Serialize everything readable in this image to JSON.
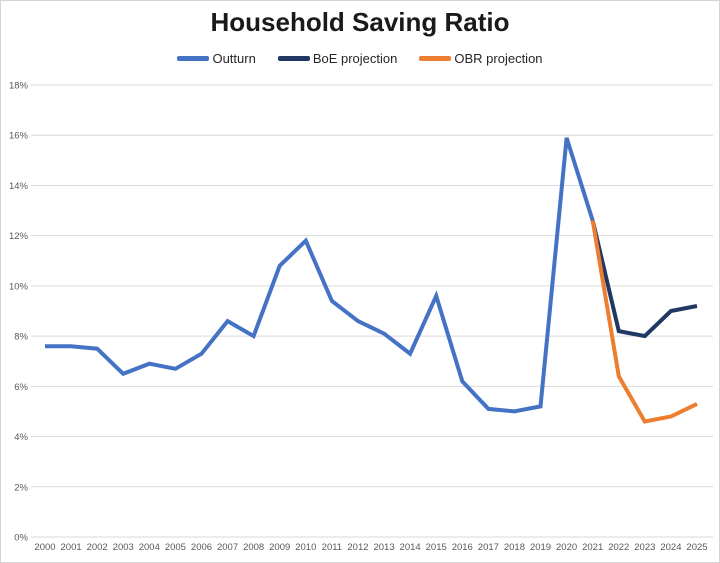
{
  "title": "Household Saving Ratio",
  "legend": [
    {
      "label": "Outturn",
      "color": "#4472C4"
    },
    {
      "label": "BoE projection",
      "color": "#1F3864"
    },
    {
      "label": "OBR projection",
      "color": "#ED7D31"
    }
  ],
  "axis": {
    "gridline_color": "#D9D9D9",
    "tick_label_color": "#595959",
    "ytick_labels": [
      "0%",
      "2%",
      "4%",
      "6%",
      "8%",
      "10%",
      "12%",
      "14%",
      "16%",
      "18%"
    ],
    "xtick_labels": [
      "2000",
      "2001",
      "2002",
      "2003",
      "2004",
      "2005",
      "2006",
      "2007",
      "2008",
      "2009",
      "2010",
      "2011",
      "2012",
      "2013",
      "2014",
      "2015",
      "2016",
      "2017",
      "2018",
      "2019",
      "2020",
      "2021",
      "2022",
      "2023",
      "2024",
      "2025"
    ]
  },
  "chart_data": {
    "type": "line",
    "title": "Household Saving Ratio",
    "xlabel": "",
    "ylabel": "",
    "x_range": [
      2000,
      2025
    ],
    "ylim": [
      0,
      18
    ],
    "ytick_step": 2,
    "ytick_format": "percent",
    "grid": true,
    "legend_position": "top",
    "series": [
      {
        "name": "Outturn",
        "color": "#4472C4",
        "x": [
          2000,
          2001,
          2002,
          2003,
          2004,
          2005,
          2006,
          2007,
          2008,
          2009,
          2010,
          2011,
          2012,
          2013,
          2014,
          2015,
          2016,
          2017,
          2018,
          2019,
          2020,
          2021
        ],
        "values": [
          7.6,
          7.6,
          7.5,
          6.5,
          6.9,
          6.7,
          7.3,
          8.6,
          8.0,
          10.8,
          11.8,
          9.4,
          8.6,
          8.1,
          7.3,
          9.6,
          6.2,
          5.1,
          5.0,
          5.2,
          15.9,
          12.6
        ]
      },
      {
        "name": "BoE projection",
        "color": "#1F3864",
        "x": [
          2021,
          2022,
          2023,
          2024,
          2025
        ],
        "values": [
          12.6,
          8.2,
          8.0,
          9.0,
          9.2
        ]
      },
      {
        "name": "OBR projection",
        "color": "#ED7D31",
        "x": [
          2021,
          2022,
          2023,
          2024,
          2025
        ],
        "values": [
          12.6,
          6.4,
          4.6,
          4.8,
          5.3
        ]
      }
    ]
  }
}
